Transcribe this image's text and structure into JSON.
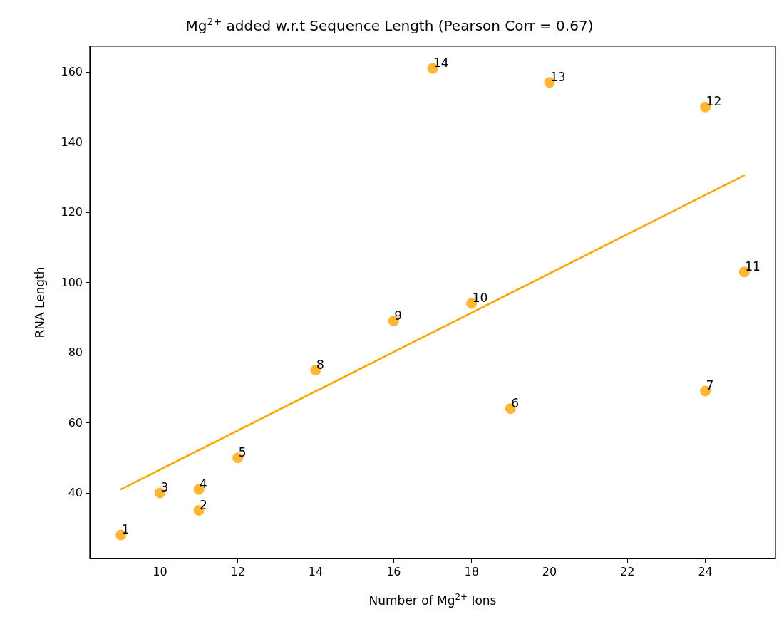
{
  "chart_data": {
    "type": "scatter",
    "title": "Mg$^{2+}$ added w.r.t Sequence Length (Pearson Corr = 0.67)",
    "xlabel": "Number of Mg$^{2+}$ Ions",
    "ylabel": "RNA Length",
    "x": [
      9,
      11,
      10,
      11,
      12,
      19,
      24,
      14,
      16,
      18,
      25,
      24,
      20,
      17
    ],
    "series": [
      {
        "color": "#ffa500",
        "values": [
          28,
          35,
          40,
          41,
          50,
          64,
          69,
          75,
          89,
          94,
          103,
          150,
          157,
          161
        ]
      },
      {
        "type": "line",
        "color": "#ffa500",
        "marker": "none",
        "x": [
          9,
          25
        ],
        "values": [
          41,
          130.5
        ]
      }
    ],
    "xlim": [
      8.2,
      25.8
    ],
    "xticks": [
      10,
      12,
      14,
      16,
      18,
      20,
      22,
      24
    ],
    "ylim": [
      21.3,
      167.3
    ],
    "yticks": [
      40,
      60,
      80,
      100,
      120,
      140,
      160
    ],
    "marker": "circle",
    "grid": false,
    "annotations": [
      {
        "text": "1",
        "x": 9,
        "y": 28
      },
      {
        "text": "2",
        "x": 11,
        "y": 35
      },
      {
        "text": "3",
        "x": 10,
        "y": 40
      },
      {
        "text": "4",
        "x": 11,
        "y": 41
      },
      {
        "text": "5",
        "x": 12,
        "y": 50
      },
      {
        "text": "6",
        "x": 19,
        "y": 64
      },
      {
        "text": "7",
        "x": 24,
        "y": 69
      },
      {
        "text": "8",
        "x": 14,
        "y": 75
      },
      {
        "text": "9",
        "x": 16,
        "y": 89
      },
      {
        "text": "10",
        "x": 18,
        "y": 94
      },
      {
        "text": "11",
        "x": 25,
        "y": 103
      },
      {
        "text": "12",
        "x": 24,
        "y": 150
      },
      {
        "text": "13",
        "x": 20,
        "y": 157
      },
      {
        "text": "14",
        "x": 17,
        "y": 161
      }
    ]
  }
}
